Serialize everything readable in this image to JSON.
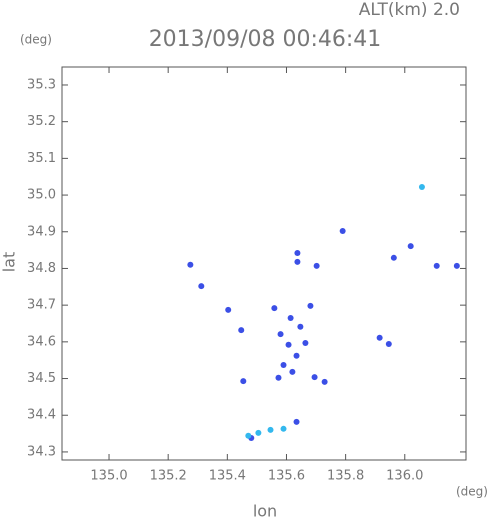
{
  "chart_data": {
    "type": "scatter",
    "title": "2013/09/08 00:46:41",
    "altitude_label": "ALT(km) 2.0",
    "y_unit": "(deg)",
    "x_unit": "(deg)",
    "x_label": "lon",
    "y_label": "lat",
    "xlim": [
      134.841,
      136.207
    ],
    "ylim": [
      34.278,
      35.349
    ],
    "xticks": [
      {
        "value": 135,
        "label": "135.0"
      },
      135.2,
      135.4,
      135.6,
      135.8,
      {
        "value": 136,
        "label": "136.0"
      }
    ],
    "yticks": [
      34.3,
      34.4,
      34.5,
      34.6,
      34.7,
      34.8,
      34.9,
      {
        "value": 35,
        "label": "35.0"
      },
      35.1,
      35.2,
      35.3
    ],
    "series": [
      {
        "color": "#3b4fe6",
        "x": [
          135.79,
          136.02,
          135.963,
          136.176,
          136.108,
          135.637,
          135.637,
          135.702,
          135.275,
          135.312,
          135.403,
          135.447,
          135.559,
          135.681,
          135.614,
          135.647,
          135.58,
          135.607,
          135.664,
          135.634,
          135.59,
          135.62,
          135.573,
          135.695,
          135.729,
          135.454,
          135.946,
          135.915,
          135.634,
          135.481
        ],
        "values": [
          34.902,
          34.861,
          34.829,
          34.807,
          34.807,
          34.842,
          34.818,
          34.807,
          34.81,
          34.752,
          34.687,
          34.632,
          34.692,
          34.698,
          34.665,
          34.641,
          34.621,
          34.592,
          34.597,
          34.562,
          34.537,
          34.518,
          34.502,
          34.504,
          34.491,
          34.493,
          34.594,
          34.611,
          34.382,
          34.338
        ]
      },
      {
        "color": "#33b8ee",
        "x": [
          136.058,
          135.471,
          135.505,
          135.546,
          135.59
        ],
        "values": [
          35.022,
          34.344,
          34.352,
          34.36,
          34.363
        ]
      }
    ]
  }
}
